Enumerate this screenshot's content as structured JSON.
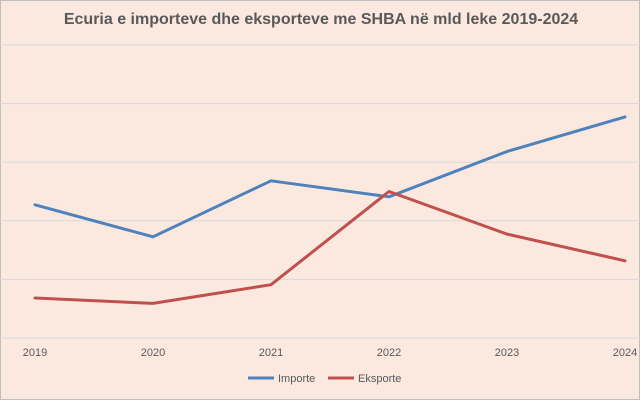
{
  "chart_data": {
    "type": "line",
    "title": "Ecuria e importeve dhe eksporteve me SHBA në mld leke 2019-2024",
    "categories": [
      "2019",
      "2020",
      "2021",
      "2022",
      "2023",
      "2024"
    ],
    "series": [
      {
        "name": "Importe",
        "color": "#4f81bd",
        "values": [
          25.0,
          19.0,
          29.5,
          26.5,
          35.0,
          41.5
        ]
      },
      {
        "name": "Eksporte",
        "color": "#c0504d",
        "values": [
          7.5,
          6.5,
          10.0,
          27.5,
          19.5,
          14.5
        ]
      }
    ],
    "xlabel": "",
    "ylabel": "",
    "ylim": [
      0,
      55
    ],
    "grid": true,
    "legend": "bottom"
  }
}
